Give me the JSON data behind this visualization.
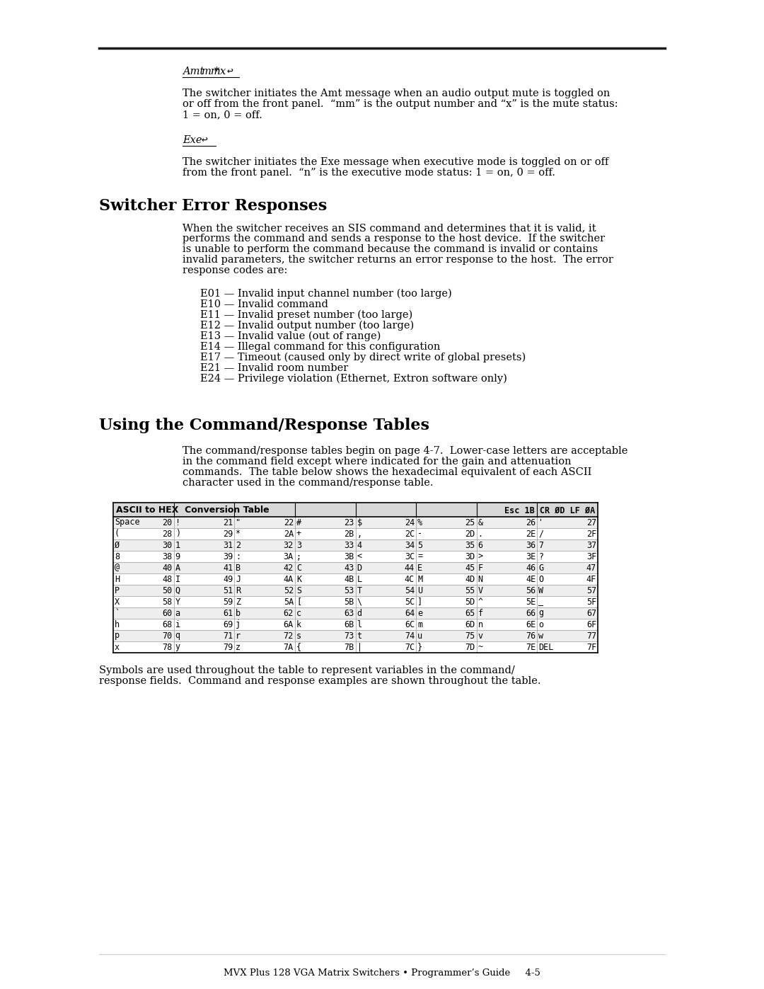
{
  "page_bg": "#ffffff",
  "footer_text": "MVX Plus 128 VGA Matrix Switchers • Programmer’s Guide     4-5",
  "error_codes": [
    "E01 — Invalid input channel number (too large)",
    "E10 — Invalid command",
    "E11 — Invalid preset number (too large)",
    "E12 — Invalid output number (too large)",
    "E13 — Invalid value (out of range)",
    "E14 — Illegal command for this configuration",
    "E17 — Timeout (caused only by direct write of global presets)",
    "E21 — Invalid room number",
    "E24 — Privilege violation (Ethernet, Extron software only)"
  ],
  "table_rows": [
    [
      [
        "Space",
        "20"
      ],
      [
        "!",
        "21"
      ],
      [
        "\"",
        "22"
      ],
      [
        "#",
        "23"
      ],
      [
        "$",
        "24"
      ],
      [
        "%",
        "25"
      ],
      [
        "&",
        "26"
      ],
      [
        "'",
        "27"
      ]
    ],
    [
      [
        "(",
        "28"
      ],
      [
        ")",
        "29"
      ],
      [
        "*",
        "2A"
      ],
      [
        "+",
        "2B"
      ],
      [
        ",",
        "2C"
      ],
      [
        "-",
        "2D"
      ],
      [
        ".",
        "2E"
      ],
      [
        "/",
        "2F"
      ]
    ],
    [
      "Ø 30",
      "1 31",
      "2 32",
      "3 33",
      "4 34",
      "5 35",
      "6 36",
      "7 37"
    ],
    [
      "8 38",
      "9 39",
      ": 3A",
      "; 3B",
      "< 3C",
      "= 3D",
      "> 3E",
      "? 3F"
    ],
    [
      "@ 40",
      "A 41",
      "B 42",
      "C 43",
      "D 44",
      "E 45",
      "F 46",
      "G 47"
    ],
    [
      "H 48",
      "I 49",
      "J 4A",
      "K 4B",
      "L 4C",
      "M 4D",
      "N 4E",
      "O 4F"
    ],
    [
      "P 50",
      "Q 51",
      "R 52",
      "S 53",
      "T 54",
      "U 55",
      "V 56",
      "W 57"
    ],
    [
      "X 58",
      "Y 59",
      "Z 5A",
      "[ 5B",
      "\\ 5C",
      "] 5D",
      "^ 5E",
      "_ 5F"
    ],
    [
      "` 60",
      "a 61",
      "b 62",
      "c 63",
      "d 64",
      "e 65",
      "f 66",
      "g 67"
    ],
    [
      "h 68",
      "i 69",
      "j 6A",
      "k 6B",
      "l 6C",
      "m 6D",
      "n 6E",
      "o 6F"
    ],
    [
      "p 70",
      "q 71",
      "r 72",
      "s 73",
      "t 74",
      "u 75",
      "v 76",
      "w 77"
    ],
    [
      "x 78",
      "y 79",
      "z 7A",
      "{ 7B",
      "| 7C",
      "} 7D",
      "~ 7E",
      "DEL 7F"
    ]
  ]
}
